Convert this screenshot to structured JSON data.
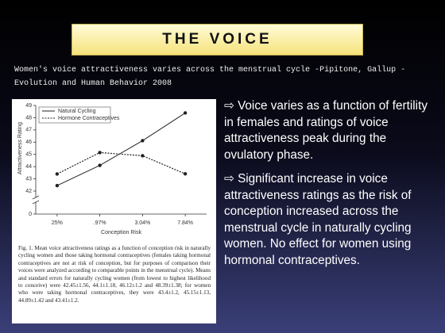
{
  "slide_title": "THE VOICE",
  "subtitle": "Women's voice attractiveness varies across the menstrual cycle -Pipitone, Gallup - Evolution and Human Behavior 2008",
  "bullets": [
    "⇨ Voice varies as a function of fertility in females and ratings of voice attractiveness peak during the ovulatory phase.",
    "⇨ Significant increase in voice attractiveness ratings as the risk of conception increased across the menstrual cycle in naturally cycling women. No effect for women using hormonal contraceptives."
  ],
  "caption": "Fig. 1. Mean voice attractiveness ratings as a function of conception risk in naturally cycling women and those taking hormonal contraceptives (females taking hormonal contraceptives are not at risk of conception, but for purposes of comparison their voices were analyzed according to comparable points in the menstrual cycle). Means and standard errors for naturally cycling women (from lowest to highest likelihood to conceive) were 42.45±1.56, 44.1±1.18, 46.12±1.2 and 48.39±1.38; for women who were taking hormonal contraceptives, they were 43.4±1.2, 45.15±1.13, 44.89±1.42 and 43.41±1.2.",
  "chart_data": {
    "type": "line",
    "x_label": "Conception Risk",
    "y_label": "Attractiveness Rating",
    "categories": [
      "25%",
      ".97%",
      "3.04%",
      "7.84%"
    ],
    "series": [
      {
        "name": "Natural Cycling",
        "color": "#222222",
        "dash": "solid",
        "values": [
          42.45,
          44.1,
          46.12,
          48.39
        ]
      },
      {
        "name": "Hormone Contraceptives",
        "color": "#222222",
        "dash": "dashed",
        "values": [
          43.4,
          45.15,
          44.89,
          43.41
        ]
      }
    ],
    "ylim": [
      42,
      49
    ],
    "yticks": [
      42,
      43,
      44,
      45,
      46,
      47,
      48,
      49
    ],
    "axis_break_tick": 0,
    "legend": "upper left"
  }
}
